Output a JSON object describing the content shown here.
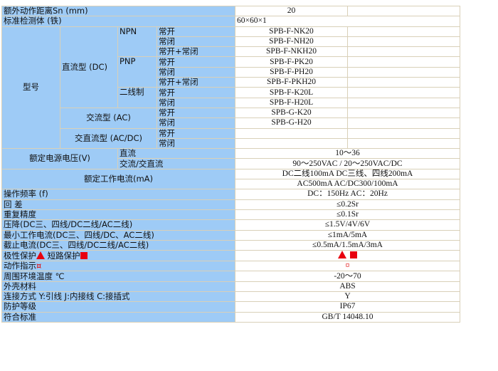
{
  "rows": {
    "sn_label": "额外动作距离Sn (mm)",
    "sn_value": "20",
    "target_label": "标准检测体 (铁)",
    "target_value": "60×60×1",
    "model_label": "型号",
    "dc_label": "直流型 (DC)",
    "npn_label": "NPN",
    "pnp_label": "PNP",
    "two_wire_label": "二线制",
    "ac_label": "交流型 (AC)",
    "acdc_label": "交直流型 (AC/DC)",
    "no": "常开",
    "nc": "常闭",
    "nonc": "常开+常闭",
    "models": [
      "SPB-F-NK20",
      "SPB-F-NH20",
      "SPB-F-NKH20",
      "SPB-F-PK20",
      "SPB-F-PH20",
      "SPB-F-PKH20",
      "SPB-F-K20L",
      "SPB-F-H20L",
      "SPB-G-K20",
      "SPB-G-H20"
    ],
    "voltage_label": "额定电源电压(V)",
    "voltage_dc_label": "直流",
    "voltage_dc_value": "10～36",
    "voltage_ac_label": "交流/交直流",
    "voltage_ac_value": "90～250VAC / 20～250VAC/DC",
    "current_label": "额定工作电流(mA)",
    "current_value_1": "DC二线100mA DC三线、四线200mA",
    "current_value_2": "AC500mA AC/DC300/100mA",
    "specs": [
      {
        "label": "操作频率 (f)",
        "value": "DC：150Hz AC：20Hz"
      },
      {
        "label": "回 差",
        "value": "≤0.2Sr"
      },
      {
        "label": "重复精度",
        "value": "≤0.1Sr"
      },
      {
        "label": "压降(DC三、四线/DC二线/AC二线)",
        "value": "≤1.5V/4V/6V"
      },
      {
        "label": "最小工作电流(DC三、四线/DC、AC二线)",
        "value": "≤1mA/5mA"
      },
      {
        "label": "截止电流(DC三、四线/DC二线/AC二线)",
        "value": "≤0.5mA/1.5mA/3mA"
      }
    ],
    "protection_label_1": "极性保护",
    "protection_label_2": "短路保护",
    "indicator_label": "动作指示",
    "indicator_symbol": "¤",
    "specs2": [
      {
        "label": "周围环境温度 ℃",
        "value": "-20～70"
      },
      {
        "label": "外壳材料",
        "value": "ABS"
      },
      {
        "label": "连接方式 Y:引线 J:内接线 C:接插式",
        "value": "Y"
      },
      {
        "label": "防护等级",
        "value": "IP67"
      },
      {
        "label": "符合标准",
        "value": "GB/T 14048.10"
      }
    ]
  },
  "icons": {
    "polarity": "red-triangle-icon",
    "short_circuit": "red-square-icon",
    "indicator": "currency-sign-icon"
  },
  "colors": {
    "label_bg": "#9ecbf6",
    "border": "#d9d0b8",
    "symbol_red": "#e8000f"
  }
}
